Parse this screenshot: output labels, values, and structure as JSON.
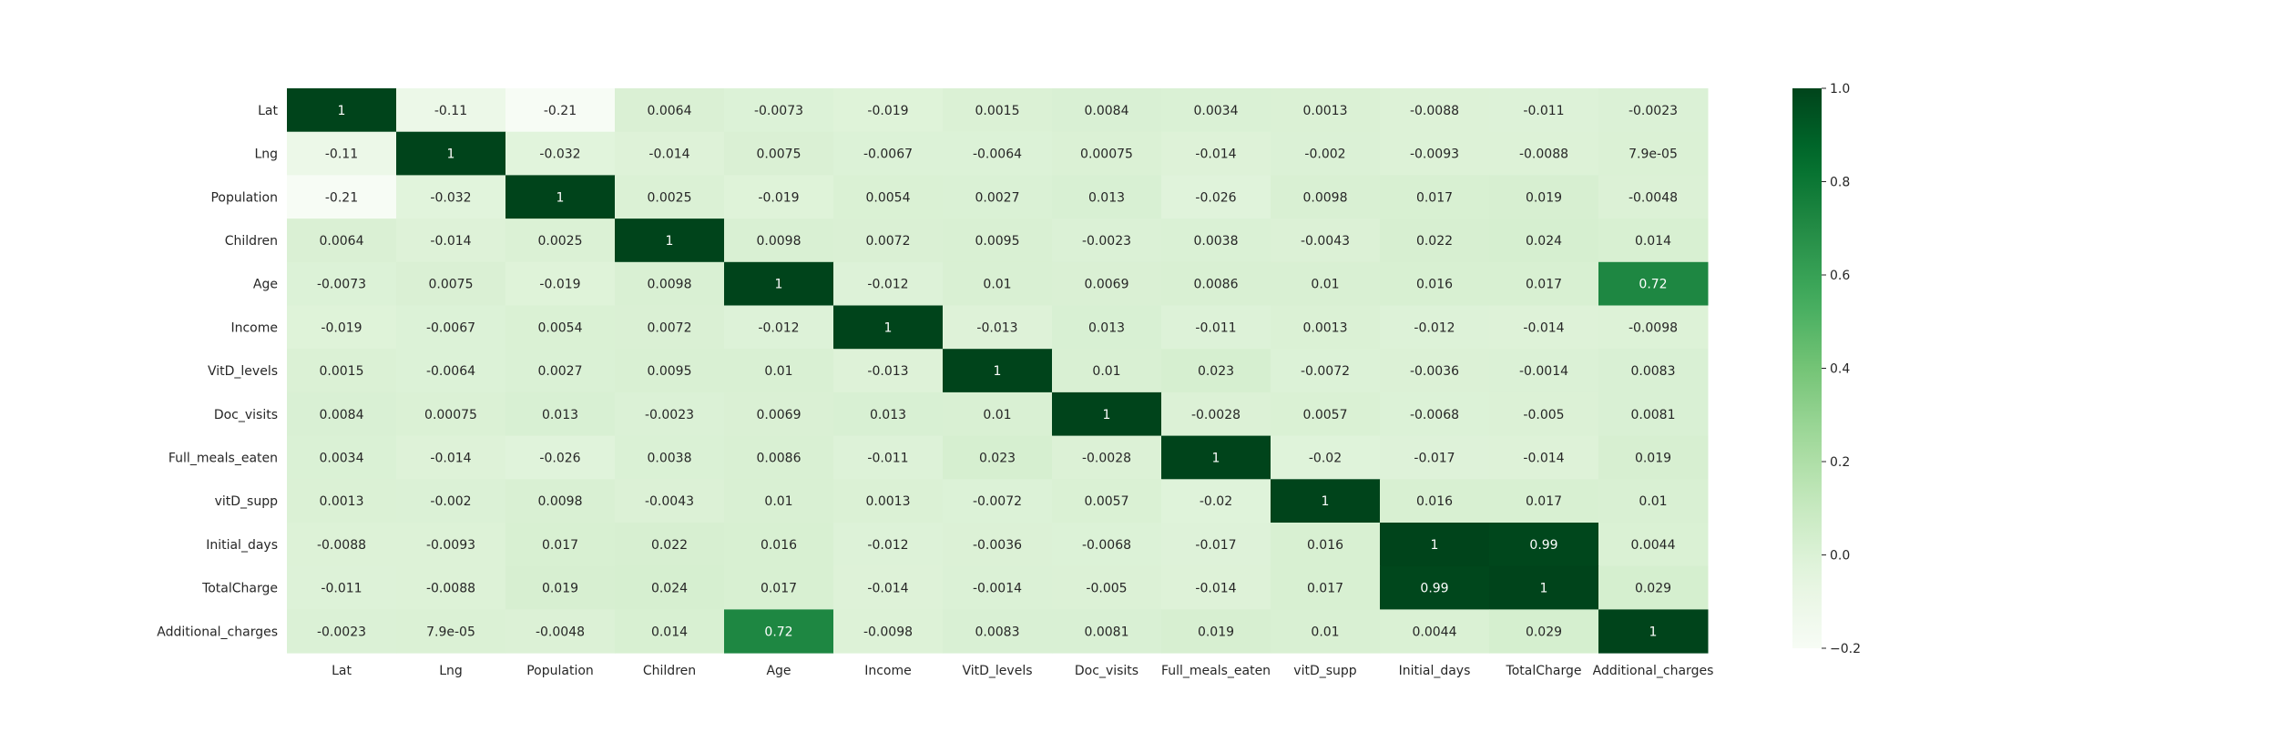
{
  "chart_data": {
    "type": "heatmap",
    "title": "",
    "xlabel": "",
    "ylabel": "",
    "colormap": "Greens (white to dark green)",
    "vmin": -0.2,
    "vmax": 1.0,
    "colorbar_ticks": [
      "1.0",
      "0.8",
      "0.6",
      "0.4",
      "0.2",
      "0.0",
      "−0.2"
    ],
    "colorbar_tick_values": [
      1.0,
      0.8,
      0.6,
      0.4,
      0.2,
      0.0,
      -0.2
    ],
    "legend_placement": "right",
    "grid": false,
    "x_labels": [
      "Lat",
      "Lng",
      "Population",
      "Children",
      "Age",
      "Income",
      "VitD_levels",
      "Doc_visits",
      "Full_meals_eaten",
      "vitD_supp",
      "Initial_days",
      "TotalCharge",
      "Additional_charges"
    ],
    "y_labels": [
      "Lat",
      "Lng",
      "Population",
      "Children",
      "Age",
      "Income",
      "VitD_levels",
      "Doc_visits",
      "Full_meals_eaten",
      "vitD_supp",
      "Initial_days",
      "TotalCharge",
      "Additional_charges"
    ],
    "cell_labels": [
      [
        "1",
        "-0.11",
        "-0.21",
        "0.0064",
        "-0.0073",
        "-0.019",
        "0.0015",
        "0.0084",
        "0.0034",
        "0.0013",
        "-0.0088",
        "-0.011",
        "-0.0023"
      ],
      [
        "-0.11",
        "1",
        "-0.032",
        "-0.014",
        "0.0075",
        "-0.0067",
        "-0.0064",
        "0.00075",
        "-0.014",
        "-0.002",
        "-0.0093",
        "-0.0088",
        "7.9e-05"
      ],
      [
        "-0.21",
        "-0.032",
        "1",
        "0.0025",
        "-0.019",
        "0.0054",
        "0.0027",
        "0.013",
        "-0.026",
        "0.0098",
        "0.017",
        "0.019",
        "-0.0048"
      ],
      [
        "0.0064",
        "-0.014",
        "0.0025",
        "1",
        "0.0098",
        "0.0072",
        "0.0095",
        "-0.0023",
        "0.0038",
        "-0.0043",
        "0.022",
        "0.024",
        "0.014"
      ],
      [
        "-0.0073",
        "0.0075",
        "-0.019",
        "0.0098",
        "1",
        "-0.012",
        "0.01",
        "0.0069",
        "0.0086",
        "0.01",
        "0.016",
        "0.017",
        "0.72"
      ],
      [
        "-0.019",
        "-0.0067",
        "0.0054",
        "0.0072",
        "-0.012",
        "1",
        "-0.013",
        "0.013",
        "-0.011",
        "0.0013",
        "-0.012",
        "-0.014",
        "-0.0098"
      ],
      [
        "0.0015",
        "-0.0064",
        "0.0027",
        "0.0095",
        "0.01",
        "-0.013",
        "1",
        "0.01",
        "0.023",
        "-0.0072",
        "-0.0036",
        "-0.0014",
        "0.0083"
      ],
      [
        "0.0084",
        "0.00075",
        "0.013",
        "-0.0023",
        "0.0069",
        "0.013",
        "0.01",
        "1",
        "-0.0028",
        "0.0057",
        "-0.0068",
        "-0.005",
        "0.0081"
      ],
      [
        "0.0034",
        "-0.014",
        "-0.026",
        "0.0038",
        "0.0086",
        "-0.011",
        "0.023",
        "-0.0028",
        "1",
        "-0.02",
        "-0.017",
        "-0.014",
        "0.019"
      ],
      [
        "0.0013",
        "-0.002",
        "0.0098",
        "-0.0043",
        "0.01",
        "0.0013",
        "-0.0072",
        "0.0057",
        "-0.02",
        "1",
        "0.016",
        "0.017",
        "0.01"
      ],
      [
        "-0.0088",
        "-0.0093",
        "0.017",
        "0.022",
        "0.016",
        "-0.012",
        "-0.0036",
        "-0.0068",
        "-0.017",
        "0.016",
        "1",
        "0.99",
        "0.0044"
      ],
      [
        "-0.011",
        "-0.0088",
        "0.019",
        "0.024",
        "0.017",
        "-0.014",
        "-0.0014",
        "-0.005",
        "-0.014",
        "0.017",
        "0.99",
        "1",
        "0.029"
      ],
      [
        "-0.0023",
        "7.9e-05",
        "-0.0048",
        "0.014",
        "0.72",
        "-0.0098",
        "0.0083",
        "0.0081",
        "0.019",
        "0.01",
        "0.0044",
        "0.029",
        "1"
      ]
    ]
  }
}
